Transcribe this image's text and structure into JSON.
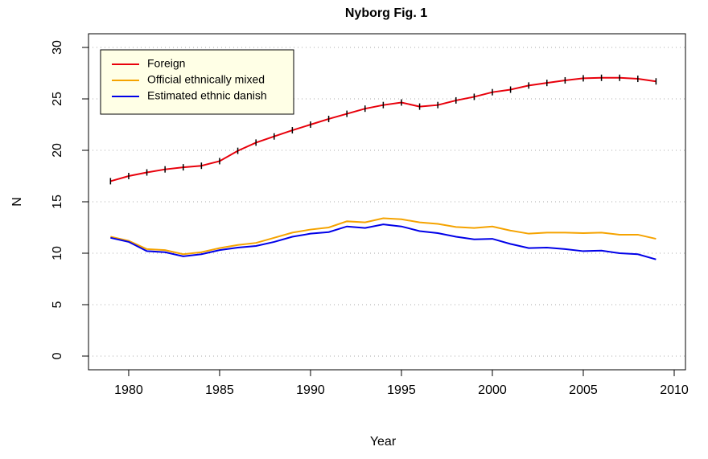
{
  "chart_data": {
    "type": "line",
    "title": "Nyborg Fig. 1",
    "x_label": "Year",
    "y_label": "N",
    "x": [
      1979,
      1980,
      1981,
      1982,
      1983,
      1984,
      1985,
      1986,
      1987,
      1988,
      1989,
      1990,
      1991,
      1992,
      1993,
      1994,
      1995,
      1996,
      1997,
      1998,
      1999,
      2000,
      2001,
      2002,
      2003,
      2004,
      2005,
      2006,
      2007,
      2008,
      2009
    ],
    "series": [
      {
        "name": "Foreign",
        "color": "#e8000b",
        "markers": true,
        "values": [
          17.0,
          17.5,
          17.85,
          18.15,
          18.35,
          18.5,
          18.95,
          19.95,
          20.75,
          21.35,
          21.95,
          22.5,
          23.05,
          23.55,
          24.05,
          24.4,
          24.65,
          24.25,
          24.4,
          24.85,
          25.2,
          25.65,
          25.9,
          26.3,
          26.55,
          26.8,
          27.0,
          27.05,
          27.05,
          26.95,
          26.7
        ]
      },
      {
        "name": "Official ethnically mixed",
        "color": "#f5a300",
        "markers": false,
        "values": [
          11.6,
          11.2,
          10.4,
          10.3,
          9.9,
          10.1,
          10.5,
          10.8,
          11.0,
          11.5,
          12.0,
          12.3,
          12.5,
          13.1,
          13.0,
          13.4,
          13.3,
          13.0,
          12.85,
          12.55,
          12.45,
          12.6,
          12.2,
          11.9,
          12.0,
          12.0,
          11.95,
          12.0,
          11.8,
          11.8,
          11.4
        ]
      },
      {
        "name": "Estimated ethnic danish",
        "color": "#0000e8",
        "markers": false,
        "values": [
          11.5,
          11.1,
          10.2,
          10.1,
          9.7,
          9.9,
          10.3,
          10.55,
          10.7,
          11.1,
          11.6,
          11.9,
          12.05,
          12.6,
          12.45,
          12.8,
          12.6,
          12.15,
          11.95,
          11.6,
          11.35,
          11.4,
          10.9,
          10.5,
          10.55,
          10.4,
          10.2,
          10.25,
          10.0,
          9.9,
          9.4
        ]
      }
    ],
    "xlim": [
      1977.79,
      2010.62
    ],
    "xticks": [
      1980,
      1985,
      1990,
      1995,
      2000,
      2005,
      2010
    ],
    "ylim": [
      -1.33,
      31.33
    ],
    "yticks": [
      0,
      5,
      10,
      15,
      20,
      25,
      30
    ],
    "grid": true,
    "legend": "top-left",
    "legend_background": "#ffffe6"
  }
}
